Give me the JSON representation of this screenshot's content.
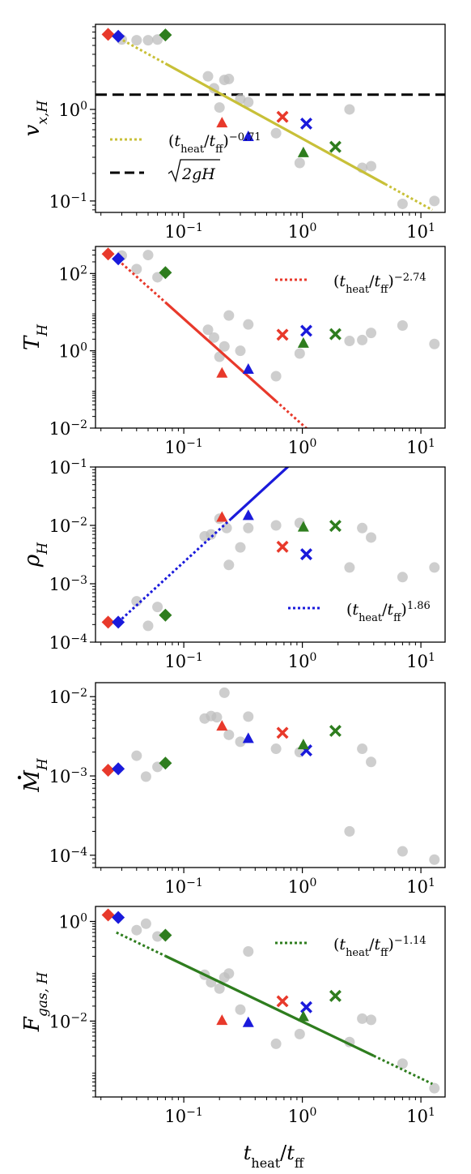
{
  "figure": {
    "xlabel": {
      "base": "t",
      "sub": "heat",
      "sep": "/",
      "base2": "t",
      "sub2": "ff"
    }
  },
  "chart_data": [
    {
      "type": "scatter",
      "ylabel": {
        "base": "v",
        "sub": "x,H"
      },
      "xscale": "log",
      "yscale": "log",
      "xlim": [
        0.018,
        16
      ],
      "ylim": [
        0.075,
        8.5
      ],
      "xticks": [
        {
          "v": 0.1,
          "m": "10",
          "e": "−1"
        },
        {
          "v": 1,
          "m": "10",
          "e": "0"
        },
        {
          "v": 10,
          "m": "10",
          "e": "1"
        }
      ],
      "yticks": [
        {
          "v": 0.1,
          "m": "10",
          "e": "−1"
        },
        {
          "v": 1,
          "m": "10",
          "e": "0"
        }
      ],
      "background_points": [
        [
          0.03,
          5.8
        ],
        [
          0.04,
          5.7
        ],
        [
          0.05,
          5.7
        ],
        [
          0.06,
          5.8
        ],
        [
          0.16,
          2.3
        ],
        [
          0.18,
          1.7
        ],
        [
          0.2,
          1.05
        ],
        [
          0.22,
          2.1
        ],
        [
          0.24,
          2.15
        ],
        [
          0.3,
          1.3
        ],
        [
          0.35,
          1.2
        ],
        [
          0.6,
          0.55
        ],
        [
          0.95,
          0.26
        ],
        [
          2.5,
          1.0
        ],
        [
          3.2,
          0.23
        ],
        [
          3.8,
          0.24
        ],
        [
          7.0,
          0.093
        ],
        [
          13.0,
          0.1
        ]
      ],
      "series": [
        {
          "color": "#e8392b",
          "points": [
            {
              "x": 0.023,
              "y": 6.6,
              "marker": "diamond"
            },
            {
              "x": 0.21,
              "y": 0.72,
              "marker": "triangle"
            },
            {
              "x": 0.68,
              "y": 0.83,
              "marker": "x"
            }
          ]
        },
        {
          "color": "#1a1adb",
          "points": [
            {
              "x": 0.028,
              "y": 6.3,
              "marker": "diamond"
            },
            {
              "x": 0.35,
              "y": 0.51,
              "marker": "triangle"
            },
            {
              "x": 1.08,
              "y": 0.7,
              "marker": "x"
            }
          ]
        },
        {
          "color": "#2e7d1e",
          "points": [
            {
              "x": 0.07,
              "y": 6.5,
              "marker": "diamond"
            },
            {
              "x": 1.02,
              "y": 0.34,
              "marker": "triangle"
            },
            {
              "x": 1.9,
              "y": 0.39,
              "marker": "x"
            }
          ]
        }
      ],
      "fit": {
        "color": "#c8c038",
        "x_start": 0.026,
        "y_start": 6.4,
        "x_end": 12.5,
        "exponent": -0.71,
        "solid_from": 0.07,
        "solid_to": 5.0
      },
      "hline": {
        "y": 1.45,
        "color": "#000000"
      },
      "legend": [
        {
          "style": "dotted",
          "color": "#c8c038",
          "t": "t",
          "t_sub": "heat",
          "f": "t",
          "f_sub": "ff",
          "exp": "−0.71"
        },
        {
          "style": "dashed",
          "color": "#000000",
          "sqrt": "2gH"
        }
      ]
    },
    {
      "type": "scatter",
      "ylabel": {
        "base": "T",
        "sub": "H"
      },
      "xscale": "log",
      "yscale": "log",
      "xlim": [
        0.018,
        16
      ],
      "ylim": [
        0.01,
        500
      ],
      "xticks": [
        {
          "v": 0.1,
          "m": "10",
          "e": "−1"
        },
        {
          "v": 1,
          "m": "10",
          "e": "0"
        },
        {
          "v": 10,
          "m": "10",
          "e": "1"
        }
      ],
      "yticks": [
        {
          "v": 0.01,
          "m": "10",
          "e": "−2"
        },
        {
          "v": 1,
          "m": "10",
          "e": "0"
        },
        {
          "v": 100,
          "m": "10",
          "e": "2"
        }
      ],
      "background_points": [
        [
          0.03,
          290
        ],
        [
          0.04,
          130
        ],
        [
          0.05,
          300
        ],
        [
          0.06,
          80
        ],
        [
          0.16,
          3.5
        ],
        [
          0.18,
          2.2
        ],
        [
          0.2,
          0.7
        ],
        [
          0.22,
          1.3
        ],
        [
          0.24,
          8.2
        ],
        [
          0.3,
          1.0
        ],
        [
          0.35,
          4.8
        ],
        [
          0.6,
          0.22
        ],
        [
          0.95,
          0.85
        ],
        [
          2.5,
          1.8
        ],
        [
          3.2,
          1.9
        ],
        [
          3.8,
          2.9
        ],
        [
          7.0,
          4.5
        ],
        [
          13.0,
          1.5
        ]
      ],
      "series": [
        {
          "color": "#e8392b",
          "points": [
            {
              "x": 0.023,
              "y": 320,
              "marker": "diamond"
            },
            {
              "x": 0.21,
              "y": 0.27,
              "marker": "triangle"
            },
            {
              "x": 0.68,
              "y": 2.6,
              "marker": "x"
            }
          ]
        },
        {
          "color": "#1a1adb",
          "points": [
            {
              "x": 0.028,
              "y": 240,
              "marker": "diamond"
            },
            {
              "x": 0.35,
              "y": 0.34,
              "marker": "triangle"
            },
            {
              "x": 1.08,
              "y": 3.3,
              "marker": "x"
            }
          ]
        },
        {
          "color": "#2e7d1e",
          "points": [
            {
              "x": 0.07,
              "y": 105,
              "marker": "diamond"
            },
            {
              "x": 1.02,
              "y": 1.6,
              "marker": "triangle"
            },
            {
              "x": 1.9,
              "y": 2.7,
              "marker": "x"
            }
          ]
        }
      ],
      "fit": {
        "color": "#e8392b",
        "x_start": 0.026,
        "y_start": 270,
        "x_end": 1.5,
        "exponent": -2.74,
        "solid_from": 0.07,
        "solid_to": 0.6
      },
      "legend": [
        {
          "style": "dotted",
          "color": "#e8392b",
          "t": "t",
          "t_sub": "heat",
          "f": "t",
          "f_sub": "ff",
          "exp": "−2.74"
        }
      ]
    },
    {
      "type": "scatter",
      "ylabel": {
        "base": "ρ",
        "sub": "H"
      },
      "xscale": "log",
      "yscale": "log",
      "xlim": [
        0.018,
        16
      ],
      "ylim": [
        0.0001,
        0.1
      ],
      "xticks": [
        {
          "v": 0.1,
          "m": "10",
          "e": "−1"
        },
        {
          "v": 1,
          "m": "10",
          "e": "0"
        },
        {
          "v": 10,
          "m": "10",
          "e": "1"
        }
      ],
      "yticks": [
        {
          "v": 0.0001,
          "m": "10",
          "e": "−4"
        },
        {
          "v": 0.001,
          "m": "10",
          "e": "−3"
        },
        {
          "v": 0.01,
          "m": "10",
          "e": "−2"
        },
        {
          "v": 0.1,
          "m": "10",
          "e": "−1"
        }
      ],
      "background_points": [
        [
          0.04,
          0.0005
        ],
        [
          0.05,
          0.00019
        ],
        [
          0.06,
          0.0004
        ],
        [
          0.15,
          0.0065
        ],
        [
          0.17,
          0.007
        ],
        [
          0.2,
          0.013
        ],
        [
          0.23,
          0.009
        ],
        [
          0.24,
          0.0021
        ],
        [
          0.3,
          0.0042
        ],
        [
          0.35,
          0.009
        ],
        [
          0.6,
          0.01
        ],
        [
          0.95,
          0.011
        ],
        [
          2.5,
          0.0019
        ],
        [
          3.2,
          0.009
        ],
        [
          3.8,
          0.0062
        ],
        [
          7.0,
          0.0013
        ],
        [
          13.0,
          0.0019
        ]
      ],
      "series": [
        {
          "color": "#e8392b",
          "points": [
            {
              "x": 0.023,
              "y": 0.00022,
              "marker": "diamond"
            },
            {
              "x": 0.21,
              "y": 0.014,
              "marker": "triangle"
            },
            {
              "x": 0.68,
              "y": 0.0043,
              "marker": "x"
            }
          ]
        },
        {
          "color": "#1a1adb",
          "points": [
            {
              "x": 0.028,
              "y": 0.00022,
              "marker": "diamond"
            },
            {
              "x": 0.35,
              "y": 0.015,
              "marker": "triangle"
            },
            {
              "x": 1.08,
              "y": 0.0032,
              "marker": "x"
            }
          ]
        },
        {
          "color": "#2e7d1e",
          "points": [
            {
              "x": 0.07,
              "y": 0.00029,
              "marker": "diamond"
            },
            {
              "x": 1.02,
              "y": 0.0095,
              "marker": "triangle"
            },
            {
              "x": 1.9,
              "y": 0.0098,
              "marker": "x"
            }
          ]
        }
      ],
      "fit": {
        "color": "#1a1adb",
        "x_start": 0.028,
        "y_start": 0.00022,
        "x_end": 0.88,
        "exponent": 1.86,
        "solid_from": 0.25,
        "solid_to": 0.88
      },
      "legend": [
        {
          "style": "dotted",
          "color": "#1a1adb",
          "t": "t",
          "t_sub": "heat",
          "f": "t",
          "f_sub": "ff",
          "exp": "1.86"
        }
      ]
    },
    {
      "type": "scatter",
      "ylabel": {
        "base": "M",
        "sub": "H",
        "dot": true
      },
      "xscale": "log",
      "yscale": "log",
      "xlim": [
        0.018,
        16
      ],
      "ylim": [
        7e-05,
        0.015
      ],
      "xticks": [
        {
          "v": 0.1,
          "m": "10",
          "e": "−1"
        },
        {
          "v": 1,
          "m": "10",
          "e": "0"
        },
        {
          "v": 10,
          "m": "10",
          "e": "1"
        }
      ],
      "yticks": [
        {
          "v": 0.0001,
          "m": "10",
          "e": "−4"
        },
        {
          "v": 0.001,
          "m": "10",
          "e": "−3"
        },
        {
          "v": 0.01,
          "m": "10",
          "e": "−2"
        }
      ],
      "background_points": [
        [
          0.04,
          0.0018
        ],
        [
          0.048,
          0.00098
        ],
        [
          0.06,
          0.0013
        ],
        [
          0.15,
          0.0053
        ],
        [
          0.17,
          0.0057
        ],
        [
          0.19,
          0.0055
        ],
        [
          0.22,
          0.0112
        ],
        [
          0.24,
          0.0033
        ],
        [
          0.3,
          0.0027
        ],
        [
          0.35,
          0.0056
        ],
        [
          0.6,
          0.0022
        ],
        [
          0.95,
          0.002
        ],
        [
          2.5,
          0.0002
        ],
        [
          3.2,
          0.0022
        ],
        [
          3.8,
          0.0015
        ],
        [
          7.0,
          0.000112
        ],
        [
          13.0,
          8.8e-05
        ]
      ],
      "series": [
        {
          "color": "#e8392b",
          "points": [
            {
              "x": 0.023,
              "y": 0.00118,
              "marker": "diamond"
            },
            {
              "x": 0.21,
              "y": 0.0043,
              "marker": "triangle"
            },
            {
              "x": 0.68,
              "y": 0.0035,
              "marker": "x"
            }
          ]
        },
        {
          "color": "#1a1adb",
          "points": [
            {
              "x": 0.028,
              "y": 0.00123,
              "marker": "diamond"
            },
            {
              "x": 0.35,
              "y": 0.003,
              "marker": "triangle"
            },
            {
              "x": 1.08,
              "y": 0.0021,
              "marker": "x"
            }
          ]
        },
        {
          "color": "#2e7d1e",
          "points": [
            {
              "x": 0.07,
              "y": 0.00145,
              "marker": "diamond"
            },
            {
              "x": 1.02,
              "y": 0.0025,
              "marker": "triangle"
            },
            {
              "x": 1.9,
              "y": 0.0037,
              "marker": "x"
            }
          ]
        }
      ]
    },
    {
      "type": "scatter",
      "ylabel": {
        "base": "F",
        "sub": "gas, H"
      },
      "xscale": "log",
      "yscale": "log",
      "xlim": [
        0.018,
        16
      ],
      "ylim": [
        0.0003,
        2.0
      ],
      "xticks": [
        {
          "v": 0.1,
          "m": "10",
          "e": "−1"
        },
        {
          "v": 1,
          "m": "10",
          "e": "0"
        },
        {
          "v": 10,
          "m": "10",
          "e": "1"
        }
      ],
      "yticks": [
        {
          "v": 0.01,
          "m": "10",
          "e": "−2"
        },
        {
          "v": 1,
          "m": "10",
          "e": "0"
        }
      ],
      "background_points": [
        [
          0.04,
          0.67
        ],
        [
          0.048,
          0.9
        ],
        [
          0.06,
          0.5
        ],
        [
          0.15,
          0.085
        ],
        [
          0.17,
          0.06
        ],
        [
          0.2,
          0.045
        ],
        [
          0.22,
          0.075
        ],
        [
          0.24,
          0.09
        ],
        [
          0.3,
          0.017
        ],
        [
          0.35,
          0.25
        ],
        [
          0.6,
          0.0035
        ],
        [
          0.95,
          0.0055
        ],
        [
          2.5,
          0.0038
        ],
        [
          3.2,
          0.0112
        ],
        [
          3.8,
          0.0106
        ],
        [
          7.0,
          0.0014
        ],
        [
          13.0,
          0.00045
        ]
      ],
      "series": [
        {
          "color": "#e8392b",
          "points": [
            {
              "x": 0.023,
              "y": 1.35,
              "marker": "diamond"
            },
            {
              "x": 0.21,
              "y": 0.0105,
              "marker": "triangle"
            },
            {
              "x": 0.68,
              "y": 0.025,
              "marker": "x"
            }
          ]
        },
        {
          "color": "#1a1adb",
          "points": [
            {
              "x": 0.028,
              "y": 1.2,
              "marker": "diamond"
            },
            {
              "x": 0.35,
              "y": 0.0095,
              "marker": "triangle"
            },
            {
              "x": 1.08,
              "y": 0.019,
              "marker": "x"
            }
          ]
        },
        {
          "color": "#2e7d1e",
          "points": [
            {
              "x": 0.07,
              "y": 0.53,
              "marker": "diamond"
            },
            {
              "x": 1.02,
              "y": 0.0125,
              "marker": "triangle"
            },
            {
              "x": 1.9,
              "y": 0.032,
              "marker": "x"
            }
          ]
        }
      ],
      "fit": {
        "color": "#2e7d1e",
        "x_start": 0.027,
        "y_start": 0.6,
        "x_end": 12.5,
        "exponent": -1.14,
        "solid_from": 0.07,
        "solid_to": 4.0
      },
      "legend": [
        {
          "style": "dotted",
          "color": "#2e7d1e",
          "t": "t",
          "t_sub": "heat",
          "f": "t",
          "f_sub": "ff",
          "exp": "−1.14"
        }
      ]
    }
  ]
}
